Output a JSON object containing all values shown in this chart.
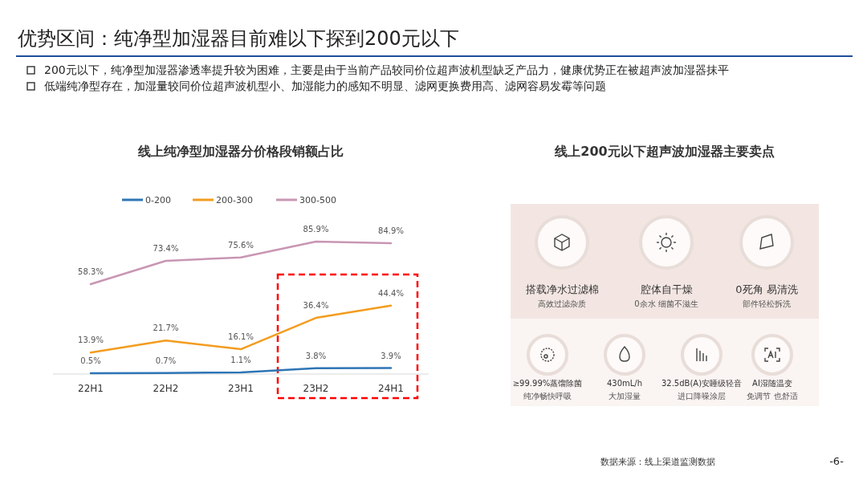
{
  "chart_data": [
    {
      "type": "line",
      "title": "线上纯净型加湿器分价格段销额占比",
      "categories": [
        "22H1",
        "22H2",
        "23H1",
        "23H2",
        "24H1"
      ],
      "series": [
        {
          "name": "0-200",
          "color": "#2e75b6",
          "values": [
            0.5,
            0.7,
            1.1,
            3.8,
            3.9
          ],
          "value_labels": [
            "0.5%",
            "0.7%",
            "1.1%",
            "3.8%",
            "3.9%"
          ]
        },
        {
          "name": "200-300",
          "color": "#f39c1f",
          "values": [
            13.9,
            21.7,
            16.1,
            36.4,
            44.4
          ],
          "value_labels": [
            "13.9%",
            "21.7%",
            "16.1%",
            "36.4%",
            "44.4%"
          ]
        },
        {
          "name": "300-500",
          "color": "#c896b4",
          "values": [
            58.3,
            73.4,
            75.6,
            85.9,
            84.9
          ],
          "value_labels": [
            "58.3%",
            "73.4%",
            "75.6%",
            "85.9%",
            "84.9%"
          ]
        }
      ],
      "legend": "top",
      "marker": "none",
      "line_style": "solid",
      "tick_labels": "x",
      "annotations": [
        "优势区间：纯净型加湿器目前难以下探到200元以下",
        "200元以下，纯净型加湿器渗透率提升较为困难，主要是由于当前产品较同价位超声波机型缺乏产品力，健康优势正在被超声波加湿器抹平",
        "低端纯净型存在，加湿量较同价位超声波机型小、加湿能力的感知不明显、滤网更换费用高、滤网容易发霉等问题",
        "数据来源：线上渠道监测数据",
        "-6-"
      ]
    },
    {
      "type": "other",
      "title": "线上200元以下超声波加湿器主要卖点",
      "annotations": [
        "搭载净水过滤棉",
        "高效过滤杂质",
        "腔体自干燥",
        "0余水 细菌不滋生",
        "0死角 易清洗",
        "部件轻松拆洗",
        "≥99.99%蒸馏除菌",
        "纯净畅快呼吸",
        "430mL/h",
        "大加湿量",
        "32.5dB(A)安睡级轻音",
        "进口降噪涂层",
        "AI湿随温变",
        "免调节 也舒适"
      ]
    }
  ]
}
